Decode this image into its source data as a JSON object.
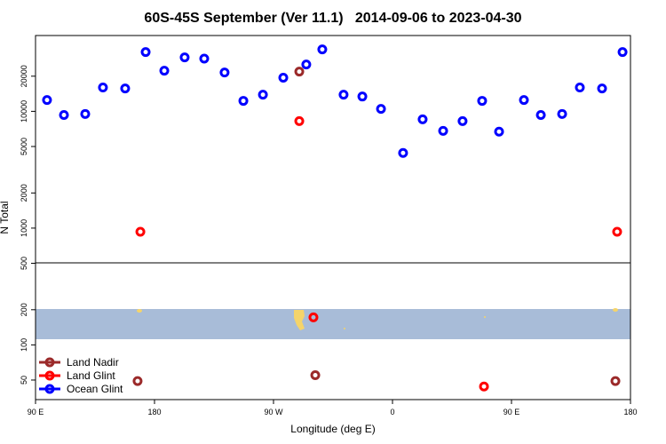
{
  "chart_data": {
    "type": "scatter",
    "title": "60S-45S September (Ver 11.1)   2014-09-06 to 2023-04-30",
    "x_label": "Longitude (deg E)",
    "y_label": "N Total",
    "y_scale": "log",
    "legend": "lower left",
    "xlim": [
      90,
      540
    ],
    "xticks": [
      {
        "value": 90,
        "label": "90 E"
      },
      {
        "value": 180,
        "label": "180"
      },
      {
        "value": 270,
        "label": "90 W"
      },
      {
        "value": 360,
        "label": "0"
      },
      {
        "value": 450,
        "label": "90 E"
      },
      {
        "value": 540,
        "label": "180"
      }
    ],
    "ylim": [
      34,
      44600
    ],
    "yticks": [
      50,
      100,
      200,
      500,
      1000,
      2000,
      5000,
      10000,
      20000
    ],
    "series": [
      {
        "name": "Land Nadir",
        "color": "#9b2a2a",
        "x": [
          289.5,
          167.2,
          301.6,
          528.6
        ],
        "values": [
          21900,
          49,
          55,
          49
        ]
      },
      {
        "name": "Land Glint",
        "color": "#ff0000",
        "x": [
          169.3,
          289.5,
          300.2,
          429.2,
          529.9
        ],
        "values": [
          930,
          8250,
          172,
          44,
          930
        ]
      },
      {
        "name": "Ocean Glint",
        "color": "#0000ff",
        "x": [
          98.7,
          111.5,
          127.6,
          141,
          157.8,
          173.3,
          187.4,
          202.8,
          217.6,
          233,
          247.2,
          262,
          277.4,
          294.8,
          306.9,
          323,
          337.2,
          351.3,
          368,
          382.8,
          398.3,
          413,
          427.8,
          440.6,
          459.4,
          472.2,
          488.3,
          501.7,
          518.5,
          534
        ],
        "values": [
          12500,
          9300,
          9500,
          16000,
          15700,
          32200,
          22300,
          29000,
          28300,
          21500,
          12300,
          13900,
          19400,
          25200,
          33900,
          13900,
          13400,
          10500,
          4400,
          8550,
          6810,
          8250,
          12300,
          6700,
          12500,
          9300,
          9500,
          16000,
          15700,
          32200
        ]
      }
    ]
  }
}
